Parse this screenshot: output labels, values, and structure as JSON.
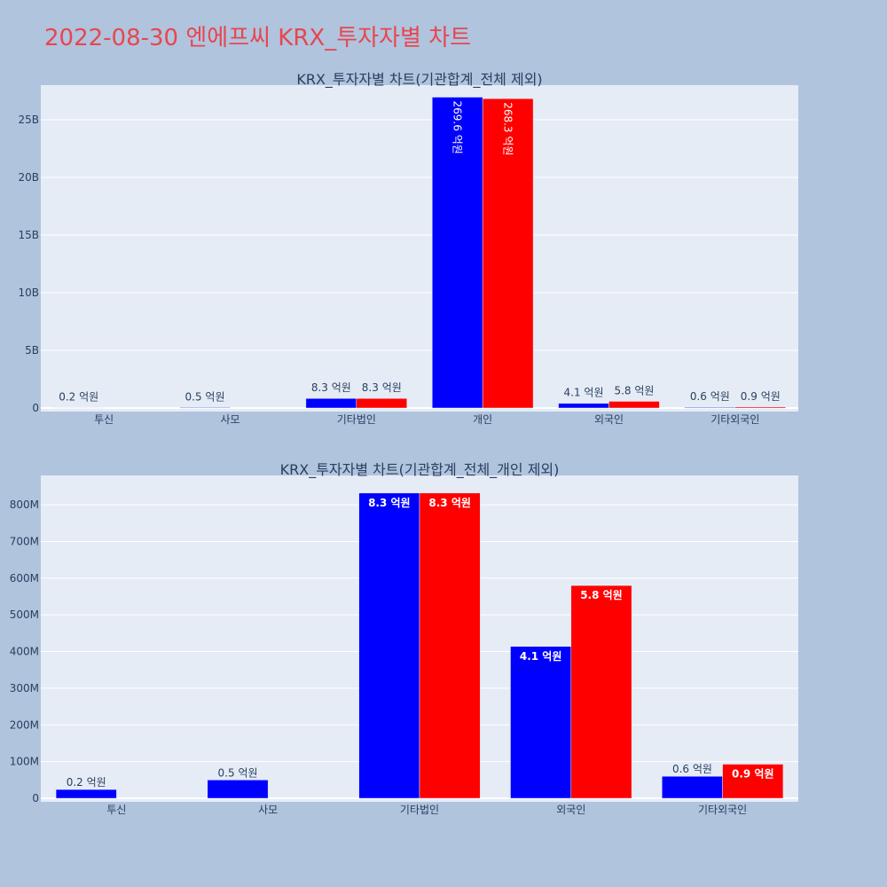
{
  "page": {
    "title": "2022-08-30 엔에프씨 KRX_투자자별 차트",
    "background": "#b0c4de",
    "plot_background": "#e5ecf6",
    "title_color": "#e8464f"
  },
  "chart_data": [
    {
      "type": "bar",
      "title": "KRX_투자자별 차트(기관합계_전체 제외)",
      "categories": [
        "투신",
        "사모",
        "기타법인",
        "개인",
        "외국인",
        "기타외국인"
      ],
      "ylim": [
        0,
        28000000000
      ],
      "yticks": [
        0,
        5000000000,
        10000000000,
        15000000000,
        20000000000,
        25000000000
      ],
      "yticklabels": [
        "0",
        "5B",
        "10B",
        "15B",
        "20B",
        "25B"
      ],
      "grid": true,
      "label_position": "outside",
      "series": [
        {
          "color": "#0000ff",
          "values": [
            20000000,
            50000000,
            830000000,
            26960000000,
            410000000,
            60000000
          ],
          "labels": [
            "0.2 억원",
            "0.5 억원",
            "8.3 억원",
            "269.6 억원",
            "4.1 억원",
            "0.6 억원"
          ]
        },
        {
          "color": "#ff0000",
          "values": [
            0,
            0,
            830000000,
            26830000000,
            580000000,
            90000000
          ],
          "labels": [
            "",
            "",
            "8.3 억원",
            "268.3 억원",
            "5.8 억원",
            "0.9 억원"
          ]
        }
      ]
    },
    {
      "type": "bar",
      "title": "KRX_투자자별 차트(기관합계_전체_개인 제외)",
      "categories": [
        "투신",
        "사모",
        "기타법인",
        "외국인",
        "기타외국인"
      ],
      "ylim": [
        0,
        880000000
      ],
      "yticks": [
        0,
        100000000,
        200000000,
        300000000,
        400000000,
        500000000,
        600000000,
        700000000,
        800000000
      ],
      "yticklabels": [
        "0",
        "100M",
        "200M",
        "300M",
        "400M",
        "500M",
        "600M",
        "700M",
        "800M"
      ],
      "grid": true,
      "label_position": "inside",
      "series": [
        {
          "color": "#0000ff",
          "values": [
            24000000,
            50000000,
            832000000,
            414000000,
            60000000
          ],
          "labels": [
            "0.2 억원",
            "0.5 억원",
            "8.3 억원",
            "4.1 억원",
            "0.6 억원"
          ]
        },
        {
          "color": "#ff0000",
          "values": [
            0,
            0,
            832000000,
            580000000,
            93000000
          ],
          "labels": [
            "",
            "",
            "8.3 억원",
            "5.8 억원",
            "0.9 억원"
          ]
        }
      ]
    }
  ]
}
